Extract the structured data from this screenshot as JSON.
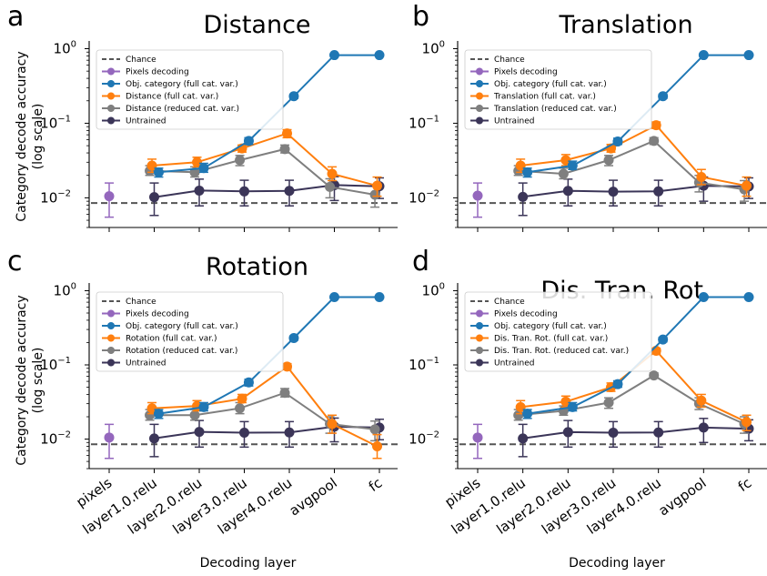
{
  "figure": {
    "ylabel": "Category decode accuracy\n(log scale)",
    "xlabel": "Decoding layer",
    "yticks": [
      {
        "value": 0.01,
        "label": "10",
        "exp": "−2"
      },
      {
        "value": 0.1,
        "label": "10",
        "exp": "−1"
      },
      {
        "value": 1,
        "label": "10",
        "exp": "0"
      }
    ],
    "layers": [
      "pixels",
      "layer1.0.relu",
      "layer2.0.relu",
      "layer3.0.relu",
      "layer4.0.relu",
      "avgpool",
      "fc"
    ]
  },
  "legend_base": {
    "chance": "Chance",
    "pixels": "Pixels decoding",
    "objcat": "Obj. category (full cat. var.)",
    "untrained": "Untrained"
  },
  "colors": {
    "pixels": "#9467bd",
    "objcat": "#1f77b4",
    "full": "#ff7f0e",
    "reduced": "#7f7f7f",
    "untrained": "#3b3558",
    "chance": "#555555"
  },
  "chart_data": [
    {
      "panel": "a",
      "type": "line",
      "title": "Distance",
      "yscale": "log",
      "ylim": [
        0.004,
        1.2
      ],
      "chance": 0.0085,
      "legend": [
        "Chance",
        "Pixels decoding",
        "Obj. category (full cat. var.)",
        "Distance (full cat. var.)",
        "Distance (reduced cat. var.)",
        "Untrained"
      ],
      "series": [
        {
          "name": "Pixels decoding",
          "key": "pixels",
          "x": [
            0
          ],
          "values": [
            0.0105
          ],
          "lo": [
            0.0055
          ],
          "hi": [
            0.0158
          ]
        },
        {
          "name": "Obj. category (full cat. var.)",
          "key": "objcat",
          "x": [
            1.1,
            2.1,
            3.1,
            4.1,
            5,
            6
          ],
          "values": [
            0.022,
            0.025,
            0.058,
            0.23,
            0.82,
            0.82
          ],
          "lo": [
            0.019,
            0.022,
            0.052,
            0.215,
            0.79,
            0.79
          ],
          "hi": [
            0.025,
            0.029,
            0.064,
            0.245,
            0.85,
            0.85
          ]
        },
        {
          "name": "Distance (full cat. var.)",
          "key": "full",
          "x": [
            0.95,
            1.95,
            2.95,
            3.95,
            4.95,
            5.95
          ],
          "values": [
            0.027,
            0.03,
            0.046,
            0.073,
            0.021,
            0.0145
          ],
          "lo": [
            0.022,
            0.026,
            0.041,
            0.064,
            0.017,
            0.0105
          ],
          "hi": [
            0.033,
            0.035,
            0.051,
            0.082,
            0.026,
            0.019
          ]
        },
        {
          "name": "Distance (reduced cat. var.)",
          "key": "reduced",
          "x": [
            0.9,
            1.9,
            2.9,
            3.9,
            4.9,
            5.9
          ],
          "values": [
            0.023,
            0.022,
            0.032,
            0.045,
            0.014,
            0.011
          ],
          "lo": [
            0.02,
            0.019,
            0.027,
            0.04,
            0.01,
            0.0075
          ],
          "hi": [
            0.027,
            0.026,
            0.037,
            0.051,
            0.018,
            0.015
          ]
        },
        {
          "name": "Untrained",
          "key": "untrained",
          "x": [
            1,
            2,
            3,
            4,
            5,
            6
          ],
          "values": [
            0.0102,
            0.0125,
            0.0122,
            0.0124,
            0.0148,
            0.0143
          ],
          "lo": [
            0.0058,
            0.0078,
            0.0078,
            0.0078,
            0.0092,
            0.0098
          ],
          "hi": [
            0.0158,
            0.0178,
            0.0172,
            0.0172,
            0.0192,
            0.0185
          ]
        }
      ]
    },
    {
      "panel": "b",
      "type": "line",
      "title": "Translation",
      "yscale": "log",
      "ylim": [
        0.004,
        1.2
      ],
      "chance": 0.0085,
      "legend": [
        "Chance",
        "Pixels decoding",
        "Obj. category (full cat. var.)",
        "Translation (full cat. var.)",
        "Translation (reduced cat. var.)",
        "Untrained"
      ],
      "series": [
        {
          "name": "Pixels decoding",
          "key": "pixels",
          "x": [
            0
          ],
          "values": [
            0.0107
          ],
          "lo": [
            0.0055
          ],
          "hi": [
            0.0158
          ]
        },
        {
          "name": "Obj. category (full cat. var.)",
          "key": "objcat",
          "x": [
            1.1,
            2.1,
            3.1,
            4.1,
            5,
            6
          ],
          "values": [
            0.022,
            0.027,
            0.057,
            0.23,
            0.82,
            0.82
          ],
          "lo": [
            0.019,
            0.024,
            0.052,
            0.215,
            0.79,
            0.79
          ],
          "hi": [
            0.025,
            0.031,
            0.063,
            0.245,
            0.85,
            0.85
          ]
        },
        {
          "name": "Translation (full cat. var.)",
          "key": "full",
          "x": [
            0.95,
            1.95,
            2.95,
            3.95,
            4.95,
            5.95
          ],
          "values": [
            0.027,
            0.032,
            0.046,
            0.094,
            0.019,
            0.0145
          ],
          "lo": [
            0.022,
            0.027,
            0.041,
            0.085,
            0.015,
            0.0105
          ],
          "hi": [
            0.033,
            0.038,
            0.052,
            0.104,
            0.024,
            0.019
          ]
        },
        {
          "name": "Translation (reduced cat. var.)",
          "key": "reduced",
          "x": [
            0.9,
            1.9,
            2.9,
            3.9,
            4.9,
            5.9
          ],
          "values": [
            0.023,
            0.021,
            0.032,
            0.058,
            0.016,
            0.013
          ],
          "lo": [
            0.02,
            0.018,
            0.027,
            0.052,
            0.012,
            0.009
          ],
          "hi": [
            0.027,
            0.025,
            0.037,
            0.064,
            0.02,
            0.017
          ]
        },
        {
          "name": "Untrained",
          "key": "untrained",
          "x": [
            1,
            2,
            3,
            4,
            5,
            6
          ],
          "values": [
            0.0103,
            0.0124,
            0.0121,
            0.0122,
            0.0145,
            0.0142
          ],
          "lo": [
            0.0058,
            0.0078,
            0.0078,
            0.0078,
            0.009,
            0.0098
          ],
          "hi": [
            0.0158,
            0.0178,
            0.0172,
            0.0172,
            0.019,
            0.0185
          ]
        }
      ]
    },
    {
      "panel": "c",
      "type": "line",
      "title": "Rotation",
      "yscale": "log",
      "ylim": [
        0.004,
        1.2
      ],
      "chance": 0.0085,
      "legend": [
        "Chance",
        "Pixels decoding",
        "Obj. category (full cat. var.)",
        "Rotation (full cat. var.)",
        "Rotation (reduced cat. var.)",
        "Untrained"
      ],
      "series": [
        {
          "name": "Pixels decoding",
          "key": "pixels",
          "x": [
            0
          ],
          "values": [
            0.0105
          ],
          "lo": [
            0.0055
          ],
          "hi": [
            0.0158
          ]
        },
        {
          "name": "Obj. category (full cat. var.)",
          "key": "objcat",
          "x": [
            1.1,
            2.1,
            3.1,
            4.1,
            5,
            6
          ],
          "values": [
            0.022,
            0.027,
            0.058,
            0.23,
            0.82,
            0.82
          ],
          "lo": [
            0.019,
            0.024,
            0.052,
            0.215,
            0.79,
            0.79
          ],
          "hi": [
            0.025,
            0.031,
            0.064,
            0.245,
            0.85,
            0.85
          ]
        },
        {
          "name": "Rotation (full cat. var.)",
          "key": "full",
          "x": [
            0.95,
            1.95,
            2.95,
            3.95,
            4.95,
            5.95
          ],
          "values": [
            0.026,
            0.028,
            0.035,
            0.095,
            0.016,
            0.008
          ],
          "lo": [
            0.022,
            0.024,
            0.031,
            0.087,
            0.012,
            0.0055
          ],
          "hi": [
            0.031,
            0.033,
            0.04,
            0.104,
            0.021,
            0.0115
          ]
        },
        {
          "name": "Rotation (reduced cat. var.)",
          "key": "reduced",
          "x": [
            0.9,
            1.9,
            2.9,
            3.9,
            4.9,
            5.9
          ],
          "values": [
            0.021,
            0.021,
            0.026,
            0.042,
            0.016,
            0.0135
          ],
          "lo": [
            0.018,
            0.018,
            0.022,
            0.037,
            0.012,
            0.0095
          ],
          "hi": [
            0.025,
            0.025,
            0.031,
            0.048,
            0.02,
            0.0175
          ]
        },
        {
          "name": "Untrained",
          "key": "untrained",
          "x": [
            1,
            2,
            3,
            4,
            5,
            6
          ],
          "values": [
            0.0102,
            0.0125,
            0.0122,
            0.0123,
            0.0147,
            0.0143
          ],
          "lo": [
            0.0058,
            0.0078,
            0.0078,
            0.0078,
            0.0092,
            0.0098
          ],
          "hi": [
            0.0158,
            0.0178,
            0.0172,
            0.0172,
            0.0192,
            0.0185
          ]
        }
      ]
    },
    {
      "panel": "d",
      "type": "line",
      "title": "Dis. Tran. Rot.",
      "yscale": "log",
      "ylim": [
        0.004,
        1.2
      ],
      "chance": 0.0085,
      "legend": [
        "Chance",
        "Pixels decoding",
        "Obj. category (full cat. var.)",
        "Dis. Tran. Rot. (full cat. var.)",
        "Dis. Tran. Rot. (reduced cat. var.)",
        "Untrained"
      ],
      "series": [
        {
          "name": "Pixels decoding",
          "key": "pixels",
          "x": [
            0
          ],
          "values": [
            0.0105
          ],
          "lo": [
            0.0055
          ],
          "hi": [
            0.0158
          ]
        },
        {
          "name": "Obj. category (full cat. var.)",
          "key": "objcat",
          "x": [
            1.1,
            2.1,
            3.1,
            4.1,
            5,
            6
          ],
          "values": [
            0.022,
            0.027,
            0.055,
            0.22,
            0.82,
            0.82
          ],
          "lo": [
            0.019,
            0.024,
            0.05,
            0.205,
            0.79,
            0.79
          ],
          "hi": [
            0.025,
            0.031,
            0.061,
            0.235,
            0.85,
            0.85
          ]
        },
        {
          "name": "Dis. Tran. Rot. (full cat. var.)",
          "key": "full",
          "x": [
            0.95,
            1.95,
            2.95,
            3.95,
            4.95,
            5.95
          ],
          "values": [
            0.027,
            0.032,
            0.05,
            0.155,
            0.033,
            0.017
          ],
          "lo": [
            0.022,
            0.027,
            0.044,
            0.142,
            0.027,
            0.013
          ],
          "hi": [
            0.033,
            0.038,
            0.057,
            0.168,
            0.04,
            0.021
          ]
        },
        {
          "name": "Dis. Tran. Rot. (reduced cat. var.)",
          "key": "reduced",
          "x": [
            0.9,
            1.9,
            2.9,
            3.9,
            4.9,
            5.9
          ],
          "values": [
            0.021,
            0.024,
            0.031,
            0.072,
            0.03,
            0.016
          ],
          "lo": [
            0.018,
            0.021,
            0.026,
            0.066,
            0.025,
            0.012
          ],
          "hi": [
            0.025,
            0.028,
            0.036,
            0.078,
            0.036,
            0.02
          ]
        },
        {
          "name": "Untrained",
          "key": "untrained",
          "x": [
            1,
            2,
            3,
            4,
            5,
            6
          ],
          "values": [
            0.0102,
            0.0124,
            0.0122,
            0.0123,
            0.0143,
            0.0138
          ],
          "lo": [
            0.0058,
            0.0078,
            0.0078,
            0.0078,
            0.009,
            0.0095
          ],
          "hi": [
            0.0158,
            0.0178,
            0.0172,
            0.0172,
            0.019,
            0.0182
          ]
        }
      ]
    }
  ]
}
